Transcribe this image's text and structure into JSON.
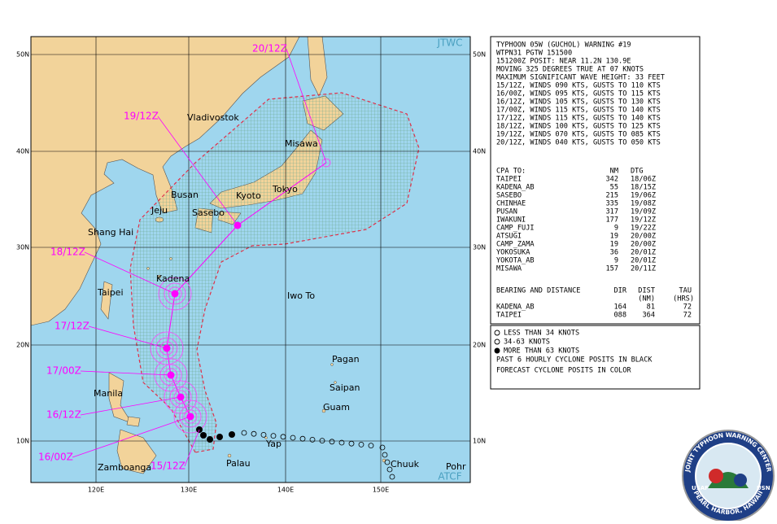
{
  "map": {
    "corner_top": "JTWC",
    "corner_bottom": "ATCF",
    "latitudes": [
      "50N",
      "40N",
      "30N",
      "20N",
      "10N"
    ],
    "longitudes": [
      "120E",
      "130E",
      "140E",
      "150E"
    ],
    "places": [
      "Vladivostok",
      "Misawa",
      "Busan",
      "Kyoto",
      "Tokyo",
      "Jeju",
      "Sasebo",
      "Shang Hai",
      "Kadena",
      "Taipei",
      "Iwo To",
      "Pagan",
      "Saipan",
      "Guam",
      "Manila",
      "Zamboanga",
      "Palau",
      "Yap",
      "Chuuk",
      "Pohr"
    ],
    "forecast_times": [
      "20/12Z",
      "19/12Z",
      "18/12Z",
      "17/12Z",
      "17/00Z",
      "16/12Z",
      "16/00Z",
      "15/12Z"
    ]
  },
  "warning": {
    "lines": [
      "TYPHOON 05W (GUCHOL) WARNING #19",
      "WTPN31 PGTW 151500",
      "151200Z POSIT: NEAR 11.2N 130.9E",
      "MOVING 325 DEGREES TRUE AT 07 KNOTS",
      "MAXIMUM SIGNIFICANT WAVE HEIGHT: 33 FEET",
      "15/12Z, WINDS 090 KTS, GUSTS TO 110 KTS",
      "16/00Z, WINDS 095 KTS, GUSTS TO 115 KTS",
      "16/12Z, WINDS 105 KTS, GUSTS TO 130 KTS",
      "17/00Z, WINDS 115 KTS, GUSTS TO 140 KTS",
      "17/12Z, WINDS 115 KTS, GUSTS TO 140 KTS",
      "18/12Z, WINDS 100 KTS, GUSTS TO 125 KTS",
      "19/12Z, WINDS 070 KTS, GUSTS TO 085 KTS",
      "20/12Z, WINDS 040 KTS, GUSTS TO 050 KTS"
    ]
  },
  "cpa": {
    "title": "CPA TO:",
    "headers": [
      "NM",
      "DTG"
    ],
    "rows": [
      [
        "TAIPEI",
        "342",
        "18/06Z"
      ],
      [
        "KADENA_AB",
        "55",
        "18/15Z"
      ],
      [
        "SASEBO",
        "215",
        "19/06Z"
      ],
      [
        "CHINHAE",
        "335",
        "19/08Z"
      ],
      [
        "PUSAN",
        "317",
        "19/09Z"
      ],
      [
        "IWAKUNI",
        "177",
        "19/12Z"
      ],
      [
        "CAMP_FUJI",
        "9",
        "19/22Z"
      ],
      [
        "ATSUGI",
        "19",
        "20/00Z"
      ],
      [
        "CAMP_ZAMA",
        "19",
        "20/00Z"
      ],
      [
        "YOKOSUKA",
        "36",
        "20/01Z"
      ],
      [
        "YOKOTA_AB",
        "9",
        "20/01Z"
      ],
      [
        "MISAWA",
        "157",
        "20/11Z"
      ]
    ]
  },
  "bearing": {
    "title": "BEARING AND DISTANCE",
    "headers": [
      "DIR",
      "DIST",
      "TAU"
    ],
    "units": [
      "(NM)",
      "(HRS)"
    ],
    "rows": [
      [
        "KADENA_AB",
        "164",
        "81",
        "72"
      ],
      [
        "TAIPEI",
        "088",
        "364",
        "72"
      ]
    ]
  },
  "legend": {
    "items": [
      "LESS THAN 34 KNOTS",
      "34-63 KNOTS",
      "MORE THAN 63 KNOTS"
    ],
    "notes": [
      "PAST 6 HOURLY CYCLONE POSITS IN BLACK",
      "FORECAST CYCLONE POSITS IN COLOR"
    ]
  },
  "logo": {
    "top": "JOINT TYPHOON WARNING CENTER",
    "bottom": "PEARL HARBOR, HAWAII",
    "left": "USAF",
    "right": "USN"
  }
}
